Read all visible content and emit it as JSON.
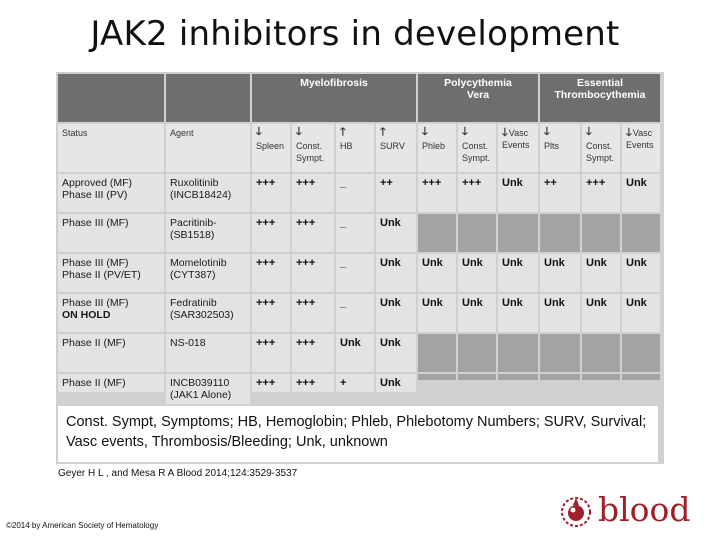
{
  "title": "JAK2 inhibitors in development",
  "groups": {
    "myelofibrosis": "Myelofibrosis",
    "pv_line1": "Polycythemia",
    "pv_line2": "Vera",
    "et_line1": "Essential",
    "et_line2": "Thrombocythemia"
  },
  "col_headers": {
    "status": "Status",
    "agent": "Agent",
    "mf_spleen": "Spleen",
    "mf_const": "Const. Sympt.",
    "mf_hb": "HB",
    "mf_surv": "SURV",
    "pv_phleb": "Phleb",
    "pv_const": "Const. Sympt.",
    "pv_vasc": "Vasc Events",
    "et_plts": "Plts",
    "et_const": "Const. Sympt.",
    "et_vasc": "Vasc Events"
  },
  "arrows": {
    "down": "🡓",
    "up": "🡑"
  },
  "rows": [
    {
      "status": "Approved (MF)\nPhase III (PV)",
      "agent": "Ruxolitinib\n(INCB18424)",
      "spleen": "+++",
      "const": "+++",
      "hb": "_",
      "surv": "++",
      "phleb": "+++",
      "pv_const": "+++",
      "pv_vasc": "Unk",
      "plts": "++",
      "et_const": "+++",
      "et_vasc": "Unk"
    },
    {
      "status": "Phase III (MF)",
      "agent": "Pacritinib-\n(SB1518)",
      "spleen": "+++",
      "const": "+++",
      "hb": "_",
      "surv": "Unk"
    },
    {
      "status": "Phase III (MF)\nPhase II (PV/ET)",
      "agent": "Momelotinib\n(CYT387)",
      "spleen": "+++",
      "const": "+++",
      "hb": "_",
      "surv": "Unk",
      "phleb": "Unk",
      "pv_const": "Unk",
      "pv_vasc": "Unk",
      "plts": "Unk",
      "et_const": "Unk",
      "et_vasc": "Unk"
    },
    {
      "status": "Phase III (MF)",
      "status_extra": "ON HOLD",
      "agent": "Fedratinib\n(SAR302503)",
      "spleen": "+++",
      "const": "+++",
      "hb": "_",
      "surv": "Unk",
      "phleb": "Unk",
      "pv_const": "Unk",
      "pv_vasc": "Unk",
      "plts": "Unk",
      "et_const": "Unk",
      "et_vasc": "Unk"
    },
    {
      "status": "Phase II (MF)",
      "agent": "NS-018",
      "spleen": "+++",
      "const": "+++",
      "hb": "Unk",
      "surv": "Unk"
    },
    {
      "status": "Phase II (MF)",
      "agent": "INCB039110\n(JAK1 Alone)",
      "spleen": "+++",
      "const": "+++",
      "hb": "+",
      "surv": "Unk"
    }
  ],
  "footnote": "Const. Sympt, Symptoms; HB, Hemoglobin; Phleb, Phlebotomy Numbers; SURV, Survival; Vasc events, Thrombosis/Bleeding; Unk, unknown",
  "citation": "Geyer H L , and Mesa R A Blood 2014;124:3529-3537",
  "copyright": "©2014 by American Society of Hematology",
  "logo_text": "blood",
  "colors": {
    "header_dark": "#6e6e6e",
    "cell_light": "#e3e3e3",
    "cell_empty": "#a3a3a3",
    "logo_red": "#a0202a"
  }
}
